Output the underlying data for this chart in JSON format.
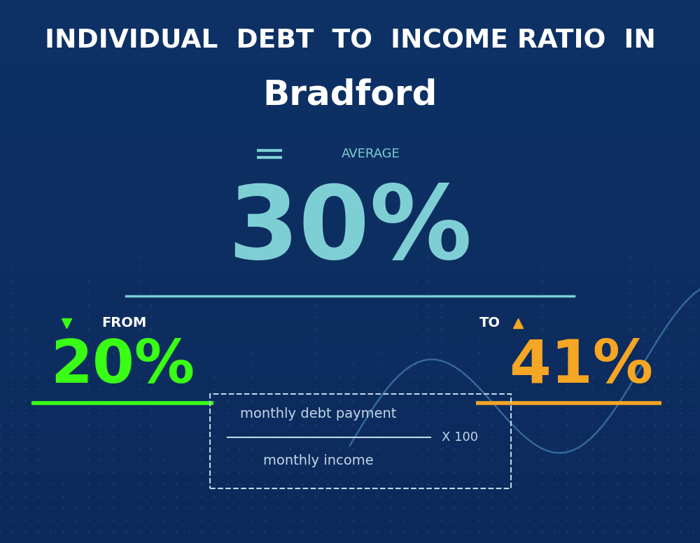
{
  "title_line1": "INDIVIDUAL  DEBT  TO  INCOME RATIO  IN",
  "title_line2": "Bradford",
  "avg_label": "AVERAGE",
  "avg_value": "30%",
  "from_label": "FROM",
  "from_value": "20%",
  "to_label": "TO",
  "to_value": "41%",
  "formula_top": "monthly debt payment",
  "formula_multiplier": "X 100",
  "formula_bottom": "monthly income",
  "bg_color": "#0d2a5c",
  "title_color": "#ffffff",
  "avg_label_color": "#7ecfd4",
  "avg_value_color": "#7ecfd4",
  "from_color": "#39ff14",
  "to_color": "#f5a623",
  "formula_color": "#c0d8e8",
  "separator_color": "#7ecfd4",
  "box_color": "#c0d8e8",
  "dot_color": "#1a4a8a",
  "line_color": "#5599cc"
}
